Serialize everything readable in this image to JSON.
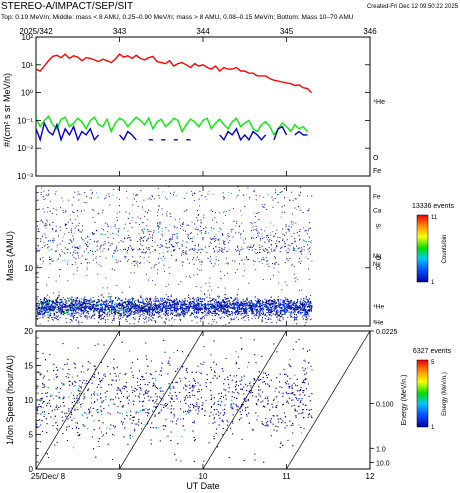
{
  "header": {
    "title": "STEREO-A/IMPACT/SEP/SIT",
    "created": "Created-Fri Dec 12 09:50:22 2025",
    "subtitle": "Top: 0.19 MeV/n; Middle: mass < 8 AMU, 0.25–0.90 MeV/n; mass > 8 AMU, 0.08–0.15 MeV/n; Bottom: Mass 10–70 AMU"
  },
  "chart_data": [
    {
      "type": "line",
      "panel": "top",
      "top_axis_labels": [
        "2025/342",
        "343",
        "344",
        "345",
        "346"
      ],
      "x_range": [
        8,
        12
      ],
      "ylabel": "#/(cm² s sr MeV/n)",
      "y_scale": "log",
      "ylim": [
        0.001,
        100
      ],
      "y_tick_labels": [
        "10⁻³",
        "10⁻²",
        "10⁻¹",
        "10⁰",
        "10¹",
        "10²"
      ],
      "y_tick_values": [
        0.001,
        0.01,
        0.1,
        1,
        10,
        100
      ],
      "series": [
        {
          "name": "⁴He",
          "color": "#ff0000",
          "x": [
            8.0,
            8.05,
            8.1,
            8.15,
            8.2,
            8.25,
            8.3,
            8.35,
            8.4,
            8.45,
            8.5,
            8.55,
            8.6,
            8.65,
            8.7,
            8.75,
            8.8,
            8.85,
            8.9,
            8.95,
            9.0,
            9.05,
            9.1,
            9.15,
            9.2,
            9.25,
            9.3,
            9.35,
            9.4,
            9.45,
            9.5,
            9.55,
            9.6,
            9.65,
            9.7,
            9.75,
            9.8,
            9.85,
            9.9,
            9.95,
            10.0,
            10.05,
            10.1,
            10.15,
            10.2,
            10.25,
            10.3,
            10.35,
            10.4,
            10.45,
            10.5,
            10.55,
            10.6,
            10.65,
            10.7,
            10.75,
            10.8,
            10.85,
            10.9,
            10.95,
            11.0,
            11.05,
            11.1,
            11.15,
            11.2,
            11.25,
            11.3
          ],
          "values": [
            7,
            6,
            9,
            14,
            20,
            22,
            18,
            24,
            17,
            21,
            19,
            14,
            18,
            17,
            15,
            13,
            16,
            14,
            12,
            16,
            24,
            19,
            21,
            17,
            22,
            17,
            15,
            18,
            20,
            13,
            12,
            11,
            14,
            9,
            11,
            12,
            10,
            8,
            11,
            9,
            10,
            8,
            7,
            9,
            6,
            8,
            7,
            7,
            8,
            6,
            6,
            5,
            5,
            4,
            4,
            4,
            3.2,
            2.8,
            2.6,
            2.4,
            2.2,
            2.1,
            1.8,
            1.9,
            1.5,
            1.4,
            1.0
          ]
        },
        {
          "name": "O",
          "color": "#00ee00",
          "x": [
            8.0,
            8.05,
            8.1,
            8.15,
            8.2,
            8.25,
            8.3,
            8.35,
            8.4,
            8.45,
            8.5,
            8.55,
            8.6,
            8.65,
            8.7,
            8.75,
            8.8,
            8.85,
            8.9,
            8.95,
            9.0,
            9.05,
            9.1,
            9.15,
            9.2,
            9.25,
            9.3,
            9.35,
            9.4,
            9.45,
            9.5,
            9.55,
            9.6,
            9.65,
            9.7,
            9.75,
            9.8,
            9.85,
            9.9,
            9.95,
            10.0,
            10.05,
            10.1,
            10.15,
            10.2,
            10.25,
            10.3,
            10.35,
            10.4,
            10.45,
            10.5,
            10.55,
            10.6,
            10.65,
            10.7,
            10.75,
            10.8,
            10.85,
            10.9,
            10.95,
            11.0,
            11.05,
            11.1,
            11.15,
            11.2,
            11.25
          ],
          "values": [
            0.12,
            0.06,
            0.1,
            0.14,
            0.07,
            0.05,
            0.11,
            0.13,
            0.06,
            0.08,
            0.12,
            0.09,
            0.05,
            0.1,
            0.13,
            0.07,
            0.06,
            0.11,
            0.04,
            0.08,
            0.12,
            0.1,
            0.06,
            0.09,
            0.13,
            0.1,
            0.07,
            0.12,
            0.05,
            0.09,
            0.11,
            0.06,
            0.08,
            0.12,
            0.1,
            0.04,
            0.07,
            0.11,
            0.09,
            0.06,
            0.1,
            0.12,
            0.05,
            0.08,
            0.11,
            0.07,
            0.05,
            0.09,
            0.12,
            0.06,
            0.08,
            0.1,
            0.05,
            0.04,
            0.07,
            0.09,
            0.06,
            0.03,
            0.05,
            0.08,
            0.06,
            0.04,
            0.07,
            0.05,
            0.06,
            0.04
          ]
        },
        {
          "name": "Fe",
          "color": "#0000cc",
          "x": [
            8.0,
            8.05,
            8.1,
            8.15,
            8.2,
            8.25,
            8.3,
            8.35,
            8.4,
            8.45,
            8.5,
            8.55,
            8.6,
            8.65,
            8.7,
            8.75,
            null,
            9.0,
            9.05,
            9.1,
            9.15,
            9.2,
            null,
            9.35,
            9.4,
            null,
            9.5,
            9.55,
            null,
            9.65,
            9.7,
            null,
            9.8,
            9.85,
            null,
            10.2,
            10.25,
            10.3,
            10.35,
            10.4,
            10.45,
            10.5,
            10.55,
            10.6,
            10.65,
            10.7,
            10.75,
            null,
            10.85,
            10.9,
            10.95,
            11.0,
            null,
            11.1,
            11.15,
            11.2,
            11.25
          ],
          "values": [
            0.05,
            0.02,
            0.08,
            0.04,
            0.03,
            0.07,
            0.02,
            0.05,
            0.03,
            0.06,
            0.02,
            0.04,
            0.03,
            0.05,
            0.02,
            0.03,
            null,
            0.03,
            0.02,
            0.04,
            0.03,
            0.02,
            null,
            0.02,
            0.02,
            null,
            0.02,
            0.02,
            null,
            0.02,
            0.02,
            null,
            0.02,
            0.02,
            null,
            0.03,
            0.02,
            0.04,
            0.03,
            0.05,
            0.02,
            0.03,
            0.02,
            0.04,
            0.03,
            0.02,
            0.03,
            null,
            0.02,
            0.05,
            0.06,
            0.03,
            null,
            0.03,
            0.04,
            0.03,
            0.03
          ]
        }
      ]
    },
    {
      "type": "scatter",
      "panel": "middle",
      "ylabel": "Mass (AMU)",
      "y_scale": "log",
      "ylim": [
        2.5,
        70
      ],
      "x_range": [
        8,
        12
      ],
      "y_tick_labels": [
        "10"
      ],
      "y_tick_values": [
        10
      ],
      "species_labels": [
        {
          "label": "Fe",
          "mass": 56
        },
        {
          "label": "Ca",
          "mass": 40
        },
        {
          "label": "Si",
          "mass": 28
        },
        {
          "label": "Mg",
          "mass": 24
        },
        {
          "label": "Ne",
          "mass": 20
        },
        {
          "label": "O",
          "mass": 16
        },
        {
          "label": "C",
          "mass": 12
        },
        {
          "label": "⁴He",
          "mass": 4
        },
        {
          "label": "³He",
          "mass": 3
        }
      ],
      "colorbar": {
        "events": "13336 events",
        "label": "Counts/bin",
        "min": "1",
        "max": "11"
      },
      "x_extent": [
        8.0,
        11.3
      ]
    },
    {
      "type": "scatter",
      "panel": "bottom",
      "ylabel": "1/Ion Speed (hour/AU)",
      "xlabel": "UT Date",
      "ylim": [
        0,
        20
      ],
      "x_range": [
        8,
        12
      ],
      "x_tick_labels": [
        "25/Dec/ 8",
        "9",
        "10",
        "11",
        "12"
      ],
      "x_tick_values": [
        8,
        9,
        10,
        11,
        12
      ],
      "y_tick_labels": [
        "0",
        "5",
        "10",
        "15",
        "20"
      ],
      "y_tick_values": [
        0,
        5,
        10,
        15,
        20
      ],
      "right_axis": {
        "label": "Energy (MeV/n.)",
        "tick_labels": [
          "0.0225",
          "0.100",
          "1.0",
          "10.0"
        ],
        "tick_values": [
          0.0225,
          0.1,
          1.0,
          10.0
        ]
      },
      "colorbar": {
        "events": "6327 events",
        "label": "Energy (MeV/n.)",
        "min": "1",
        "max": "5"
      },
      "velocity_dispersion_lines_start_days": [
        8.0,
        9.0,
        10.0,
        11.0
      ],
      "x_extent": [
        8.0,
        11.3
      ]
    }
  ]
}
